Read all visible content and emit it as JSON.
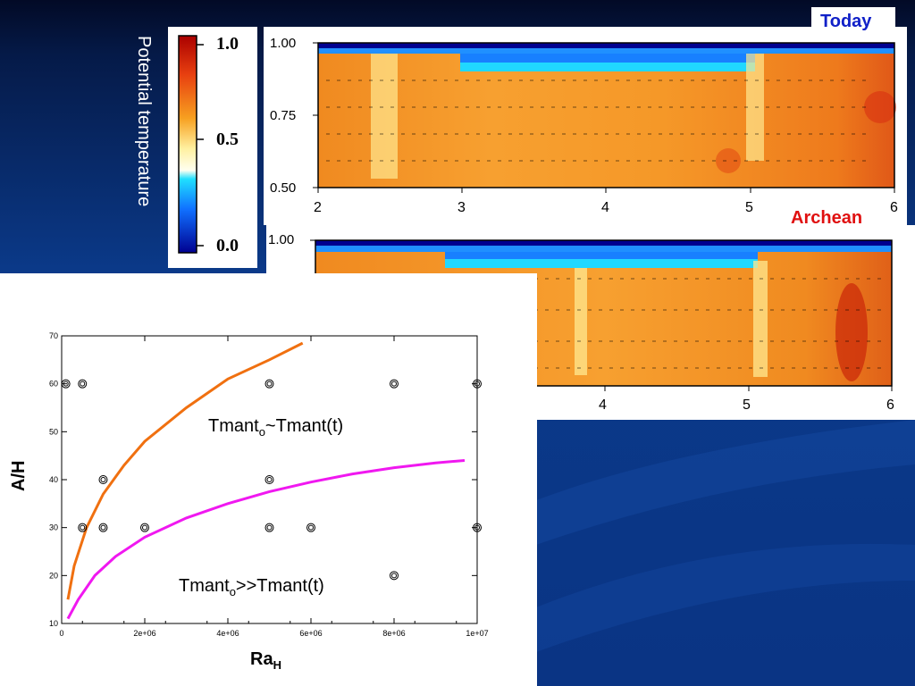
{
  "slide": {
    "colorbar": {
      "title": "Potential temperature",
      "ticks": [
        "1.0",
        "0.5",
        "0.0"
      ]
    },
    "today_label": "Today",
    "archean_label": "Archean",
    "top_panel": {
      "y_ticks": [
        "1.00",
        "0.75",
        "0.50"
      ],
      "x_ticks": [
        "2",
        "3",
        "4",
        "5",
        "6"
      ]
    },
    "bottom_panel": {
      "y_ticks": [
        "1.00"
      ],
      "x_ticks": [
        "4",
        "5",
        "6"
      ]
    }
  },
  "chart_data": {
    "type": "scatter",
    "xlabel_main": "Ra",
    "xlabel_sub": "H",
    "ylabel": "A/H",
    "xlim": [
      0,
      10000000
    ],
    "ylim": [
      10,
      70
    ],
    "x_ticks": [
      "0",
      "2e+06",
      "4e+06",
      "6e+06",
      "8e+06",
      "1e+07"
    ],
    "y_ticks": [
      "10",
      "20",
      "30",
      "40",
      "50",
      "60",
      "70"
    ],
    "x_tick_values": [
      0,
      2000000,
      4000000,
      6000000,
      8000000,
      10000000
    ],
    "y_tick_values": [
      10,
      20,
      30,
      40,
      50,
      60,
      70
    ],
    "points": [
      {
        "x": 100000,
        "y": 60
      },
      {
        "x": 500000,
        "y": 60
      },
      {
        "x": 5000000,
        "y": 60
      },
      {
        "x": 8000000,
        "y": 60
      },
      {
        "x": 10000000,
        "y": 60
      },
      {
        "x": 1000000,
        "y": 40
      },
      {
        "x": 5000000,
        "y": 40
      },
      {
        "x": 500000,
        "y": 30
      },
      {
        "x": 1000000,
        "y": 30
      },
      {
        "x": 2000000,
        "y": 30
      },
      {
        "x": 5000000,
        "y": 30
      },
      {
        "x": 6000000,
        "y": 30
      },
      {
        "x": 10000000,
        "y": 30
      },
      {
        "x": 8000000,
        "y": 20
      }
    ],
    "curves": [
      {
        "color": "#f07010",
        "points": [
          [
            150000,
            15
          ],
          [
            300000,
            22
          ],
          [
            600000,
            30
          ],
          [
            1000000,
            37
          ],
          [
            1500000,
            43
          ],
          [
            2000000,
            48
          ],
          [
            3000000,
            55
          ],
          [
            4000000,
            61
          ],
          [
            5000000,
            65
          ],
          [
            5800000,
            68.5
          ]
        ]
      },
      {
        "color": "#f018f0",
        "points": [
          [
            150000,
            11
          ],
          [
            400000,
            15
          ],
          [
            800000,
            20
          ],
          [
            1300000,
            24
          ],
          [
            2000000,
            28
          ],
          [
            3000000,
            32
          ],
          [
            4000000,
            35
          ],
          [
            5000000,
            37.5
          ],
          [
            6000000,
            39.5
          ],
          [
            7000000,
            41.2
          ],
          [
            8000000,
            42.5
          ],
          [
            9000000,
            43.5
          ],
          [
            9700000,
            44
          ]
        ]
      }
    ],
    "annotations": [
      {
        "main": "Tmant",
        "sub": "o",
        "rest": "~Tmant(t)"
      },
      {
        "main": "Tmant",
        "sub": "o",
        "rest": ">>Tmant(t)"
      }
    ]
  }
}
